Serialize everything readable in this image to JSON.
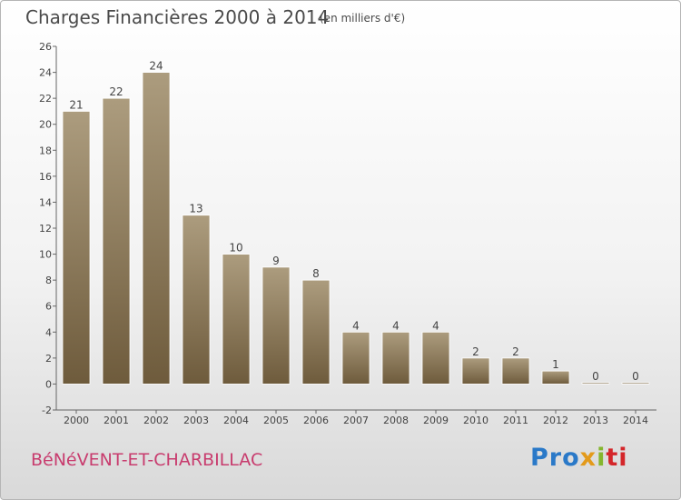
{
  "header": {
    "title": "Charges Financières 2000 à 2014",
    "subtitle": "(en milliers d'€)"
  },
  "footer": {
    "town": "BéNéVENT-ET-CHARBILLAC",
    "logo_parts": [
      "Pro",
      "x",
      "i",
      "ti"
    ]
  },
  "colors": {
    "bar_light": "#ac9c7e",
    "bar_dark": "#6e5b3c",
    "title": "#4a4a4a",
    "town": "#c83c6e"
  },
  "chart_data": {
    "type": "bar",
    "title": "Charges Financières 2000 à 2014",
    "subtitle": "(en milliers d'€)",
    "categories": [
      "2000",
      "2001",
      "2002",
      "2003",
      "2004",
      "2005",
      "2006",
      "2007",
      "2008",
      "2009",
      "2010",
      "2011",
      "2012",
      "2013",
      "2014"
    ],
    "values": [
      21,
      22,
      24,
      13,
      10,
      9,
      8,
      4,
      4,
      4,
      2,
      2,
      1,
      0,
      0
    ],
    "ylim": [
      -2,
      26
    ],
    "yticks": [
      -2,
      0,
      2,
      4,
      6,
      8,
      10,
      12,
      14,
      16,
      18,
      20,
      22,
      24,
      26
    ],
    "grid": false,
    "xlabel": "",
    "ylabel": ""
  }
}
